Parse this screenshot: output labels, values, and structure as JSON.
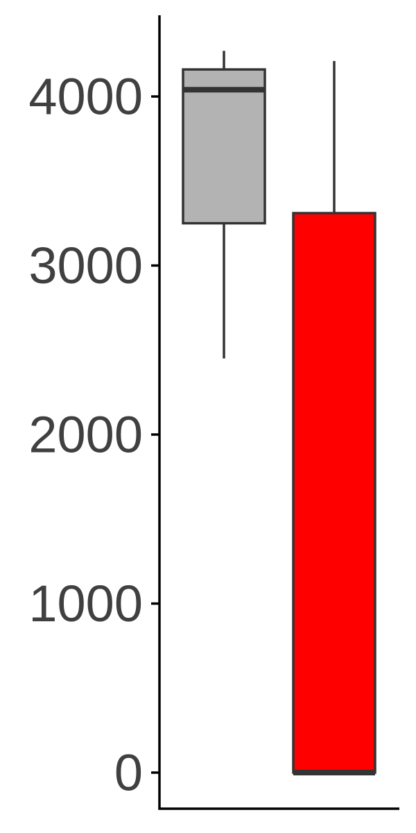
{
  "chart_data": {
    "type": "boxplot",
    "title": "",
    "xlabel": "",
    "ylabel": "",
    "ylim": [
      -200,
      4500
    ],
    "y_ticks": [
      0,
      1000,
      2000,
      3000,
      4000
    ],
    "y_tick_labels": [
      "0",
      "1000",
      "2000",
      "3000",
      "4000"
    ],
    "grid": false,
    "legend": "none",
    "series": [
      {
        "min": 2450,
        "q1": 3250,
        "median": 4040,
        "q3": 4160,
        "max": 4270,
        "fill": "#b3b3b3"
      },
      {
        "min": 0,
        "q1": 0,
        "median": 0,
        "q3": 3310,
        "max": 4210,
        "fill": "#ff0000"
      }
    ],
    "colors": {
      "axis": "#000000",
      "box_stroke": "#333333",
      "tick_text": "#404040"
    }
  }
}
